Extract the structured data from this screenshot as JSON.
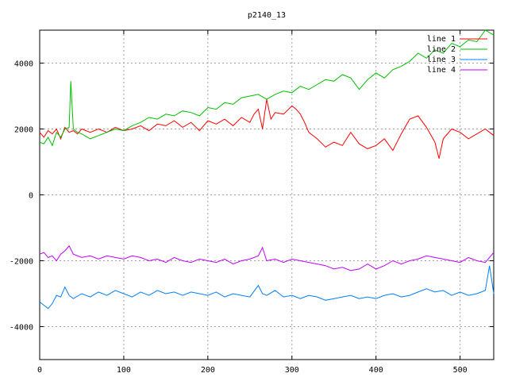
{
  "chart_data": {
    "type": "line",
    "title": "p2140_13",
    "xlabel": "",
    "ylabel": "",
    "xlim": [
      0,
      540
    ],
    "ylim": [
      -5000,
      5000
    ],
    "x_ticks": [
      0,
      100,
      200,
      300,
      400,
      500
    ],
    "y_ticks": [
      -4000,
      -2000,
      0,
      2000,
      4000
    ],
    "grid": true,
    "legend_position": "top-right",
    "series": [
      {
        "name": "line 1",
        "color": "#ff0000",
        "x": [
          0,
          5,
          10,
          15,
          20,
          25,
          30,
          35,
          40,
          45,
          50,
          60,
          70,
          80,
          90,
          100,
          110,
          120,
          130,
          140,
          150,
          160,
          170,
          180,
          190,
          200,
          210,
          220,
          230,
          240,
          250,
          255,
          260,
          265,
          270,
          275,
          280,
          290,
          300,
          305,
          310,
          315,
          320,
          330,
          340,
          350,
          360,
          370,
          380,
          390,
          400,
          410,
          420,
          430,
          440,
          450,
          460,
          470,
          475,
          480,
          490,
          500,
          510,
          520,
          530,
          540
        ],
        "y": [
          1900,
          1750,
          1950,
          1850,
          2000,
          1700,
          2050,
          1900,
          1950,
          1850,
          2000,
          1900,
          2000,
          1900,
          2050,
          1950,
          2000,
          2100,
          1950,
          2150,
          2100,
          2250,
          2050,
          2200,
          1950,
          2250,
          2150,
          2300,
          2100,
          2350,
          2200,
          2450,
          2600,
          2000,
          2900,
          2300,
          2500,
          2450,
          2700,
          2600,
          2450,
          2200,
          1900,
          1700,
          1450,
          1600,
          1500,
          1900,
          1550,
          1400,
          1500,
          1700,
          1350,
          1850,
          2300,
          2400,
          2050,
          1600,
          1100,
          1700,
          2000,
          1900,
          1700,
          1850,
          2000,
          1800
        ]
      },
      {
        "name": "line 2",
        "color": "#00c000",
        "x": [
          0,
          5,
          10,
          15,
          20,
          25,
          30,
          35,
          37,
          40,
          45,
          50,
          60,
          70,
          80,
          90,
          100,
          110,
          120,
          130,
          140,
          150,
          160,
          170,
          180,
          190,
          200,
          210,
          220,
          230,
          240,
          250,
          260,
          270,
          280,
          290,
          300,
          310,
          320,
          330,
          340,
          350,
          360,
          370,
          380,
          390,
          400,
          410,
          420,
          430,
          440,
          450,
          460,
          470,
          480,
          490,
          500,
          510,
          520,
          530,
          540
        ],
        "y": [
          1600,
          1550,
          1750,
          1500,
          1900,
          1750,
          2000,
          2050,
          3450,
          2000,
          1900,
          1850,
          1700,
          1800,
          1900,
          2000,
          1950,
          2100,
          2200,
          2350,
          2300,
          2450,
          2400,
          2550,
          2500,
          2400,
          2650,
          2600,
          2800,
          2750,
          2950,
          3000,
          3050,
          2900,
          3050,
          3150,
          3100,
          3300,
          3200,
          3350,
          3500,
          3450,
          3650,
          3550,
          3200,
          3500,
          3700,
          3550,
          3800,
          3900,
          4050,
          4300,
          4150,
          4400,
          4300,
          4600,
          4500,
          4700,
          4650,
          5000,
          4850
        ]
      },
      {
        "name": "line 3",
        "color": "#0080ff",
        "x": [
          0,
          5,
          10,
          15,
          20,
          25,
          30,
          35,
          40,
          50,
          60,
          70,
          80,
          90,
          100,
          110,
          120,
          130,
          140,
          150,
          160,
          170,
          180,
          190,
          200,
          210,
          220,
          230,
          240,
          250,
          260,
          265,
          270,
          280,
          290,
          300,
          310,
          320,
          330,
          340,
          350,
          360,
          370,
          380,
          390,
          400,
          410,
          420,
          430,
          440,
          450,
          460,
          470,
          480,
          490,
          500,
          510,
          520,
          530,
          535,
          540
        ],
        "y": [
          -3250,
          -3350,
          -3450,
          -3300,
          -3050,
          -3100,
          -2800,
          -3050,
          -3150,
          -3000,
          -3100,
          -2950,
          -3050,
          -2900,
          -3000,
          -3100,
          -2950,
          -3050,
          -2900,
          -3000,
          -2950,
          -3050,
          -2950,
          -3000,
          -3050,
          -2950,
          -3100,
          -3000,
          -3050,
          -3100,
          -2750,
          -3000,
          -3050,
          -2900,
          -3100,
          -3050,
          -3150,
          -3050,
          -3100,
          -3200,
          -3150,
          -3100,
          -3050,
          -3150,
          -3100,
          -3150,
          -3050,
          -3000,
          -3100,
          -3050,
          -2950,
          -2850,
          -2950,
          -2900,
          -3050,
          -2950,
          -3050,
          -3000,
          -2900,
          -2150,
          -3000
        ]
      },
      {
        "name": "line 4",
        "color": "#c000ff",
        "x": [
          0,
          5,
          10,
          15,
          20,
          25,
          30,
          35,
          40,
          50,
          60,
          70,
          80,
          90,
          100,
          110,
          120,
          130,
          140,
          150,
          160,
          170,
          180,
          190,
          200,
          210,
          220,
          230,
          240,
          250,
          260,
          265,
          270,
          280,
          290,
          300,
          310,
          320,
          330,
          340,
          350,
          360,
          370,
          380,
          390,
          400,
          410,
          420,
          430,
          440,
          450,
          460,
          470,
          480,
          490,
          500,
          510,
          520,
          530,
          540
        ],
        "y": [
          -1800,
          -1750,
          -1900,
          -1850,
          -2000,
          -1800,
          -1700,
          -1550,
          -1800,
          -1900,
          -1850,
          -1950,
          -1850,
          -1900,
          -1950,
          -1850,
          -1900,
          -2000,
          -1950,
          -2050,
          -1900,
          -2000,
          -2050,
          -1950,
          -2000,
          -2050,
          -1950,
          -2100,
          -2000,
          -1950,
          -1850,
          -1600,
          -2000,
          -1950,
          -2050,
          -1950,
          -2000,
          -2050,
          -2100,
          -2150,
          -2250,
          -2200,
          -2300,
          -2250,
          -2100,
          -2250,
          -2150,
          -2000,
          -2100,
          -2000,
          -1950,
          -1850,
          -1900,
          -1950,
          -2000,
          -2050,
          -1900,
          -2000,
          -2050,
          -1750
        ]
      }
    ]
  }
}
